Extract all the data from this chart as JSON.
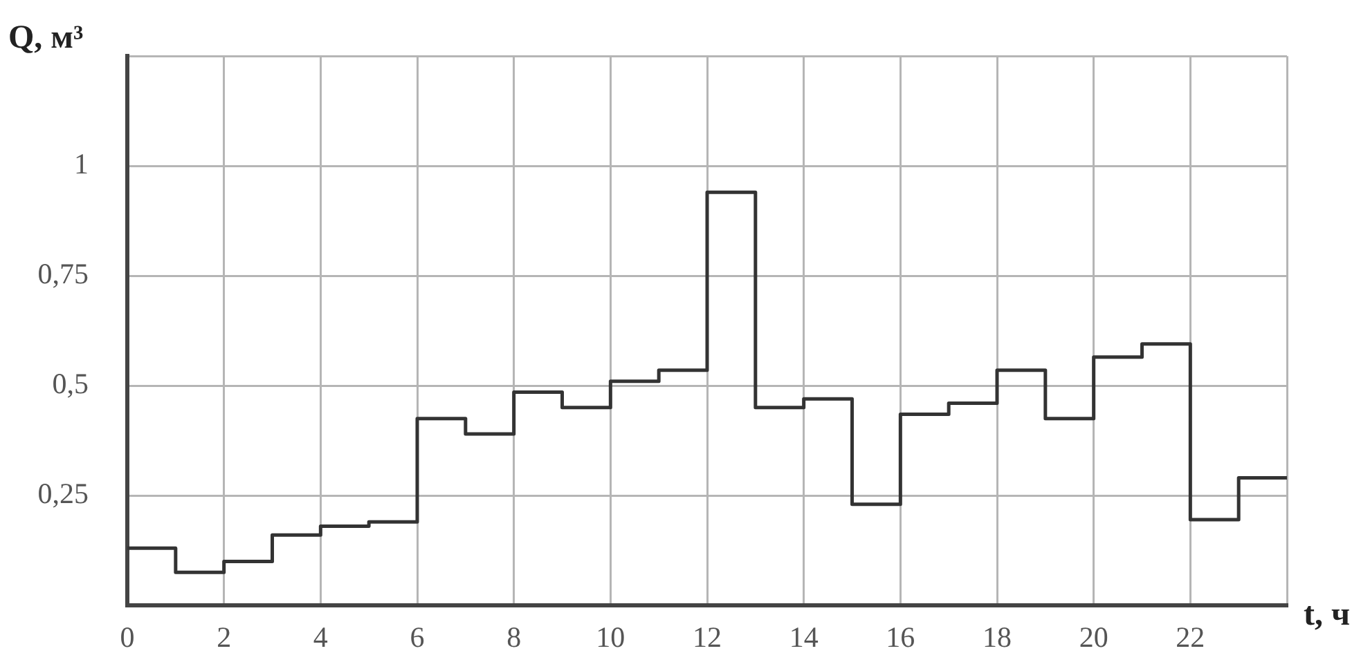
{
  "chart_data": {
    "type": "step",
    "xlabel": "t, ч",
    "ylabel": "Q, м³",
    "x": [
      0,
      1,
      2,
      3,
      4,
      5,
      6,
      7,
      8,
      9,
      10,
      11,
      12,
      13,
      14,
      15,
      16,
      17,
      18,
      19,
      20,
      21,
      22,
      23,
      24
    ],
    "values": [
      0.13,
      0.075,
      0.1,
      0.16,
      0.18,
      0.19,
      0.425,
      0.39,
      0.485,
      0.45,
      0.51,
      0.535,
      0.94,
      0.45,
      0.47,
      0.23,
      0.435,
      0.46,
      0.535,
      0.425,
      0.565,
      0.595,
      0.195,
      0.29,
      0.29
    ],
    "color": "#333333",
    "xlim": [
      0,
      24
    ],
    "xticks": [
      0,
      2,
      4,
      6,
      8,
      10,
      12,
      14,
      16,
      18,
      20,
      22,
      {
        "value": 24,
        "label": null
      }
    ],
    "ylim": [
      0,
      1.25
    ],
    "yticks": [
      {
        "value": 0,
        "label": null
      },
      {
        "value": 0.25,
        "label": "0,25"
      },
      {
        "value": 0.5,
        "label": "0,5"
      },
      {
        "value": 0.75,
        "label": "0,75"
      },
      1,
      {
        "value": 1.25,
        "label": null
      }
    ],
    "grid": true,
    "legend": false,
    "marker": "none",
    "line_style": "solid"
  }
}
